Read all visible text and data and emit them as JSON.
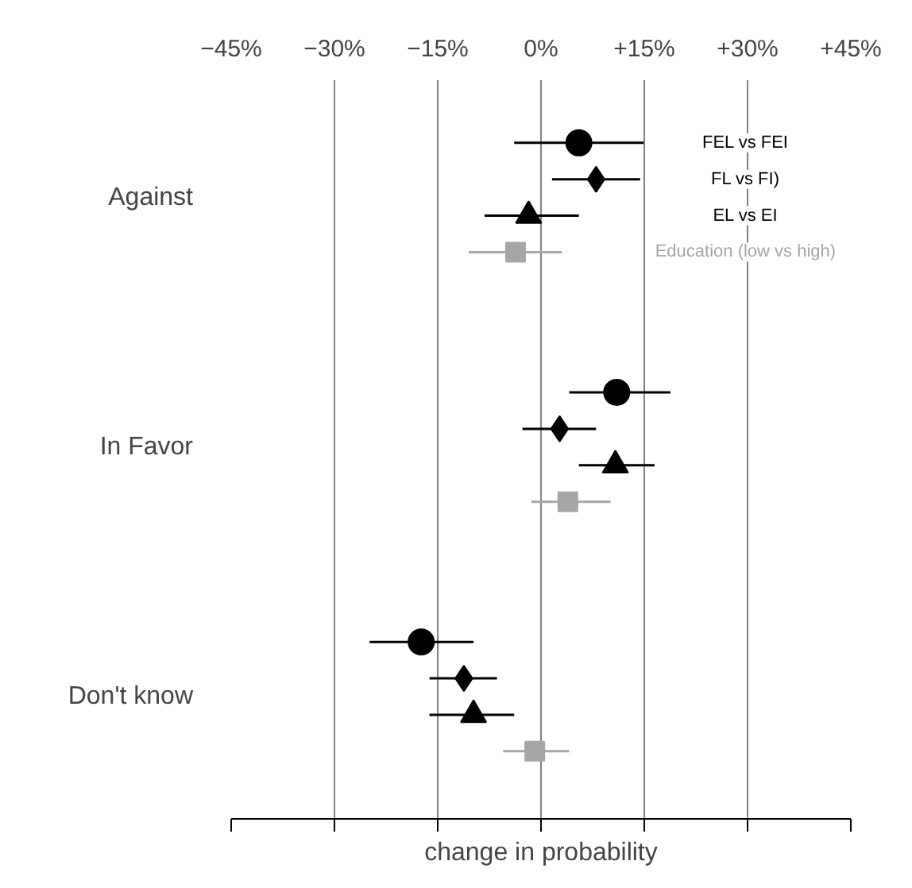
{
  "chart_data": {
    "type": "scatter",
    "orientation": "horizontal",
    "xlabel": "change in probability",
    "categories": [
      "Against",
      "In Favor",
      "Don't know"
    ],
    "series": [
      {
        "name": "FEL vs FEI",
        "color": "#000000",
        "marker": "circle",
        "values": [
          5.5,
          11.0,
          -17.4
        ],
        "errors": [
          [
            -3.9,
            14.9
          ],
          [
            4.1,
            18.8
          ],
          [
            -24.9,
            -9.8
          ]
        ]
      },
      {
        "name": "FL vs FI)",
        "color": "#000000",
        "marker": "diamond",
        "values": [
          8.0,
          2.7,
          -11.2
        ],
        "errors": [
          [
            1.6,
            14.4
          ],
          [
            -2.7,
            8.0
          ],
          [
            -16.2,
            -6.4
          ]
        ]
      },
      {
        "name": "EL vs EI",
        "color": "#000000",
        "marker": "triangle",
        "values": [
          -1.8,
          10.8,
          -9.8
        ],
        "errors": [
          [
            -8.2,
            5.5
          ],
          [
            5.5,
            16.5
          ],
          [
            -16.2,
            -3.9
          ]
        ]
      },
      {
        "name": "Education (low vs high)",
        "color": "#a6a6a6",
        "marker": "square",
        "values": [
          -3.7,
          3.9,
          -0.9
        ],
        "errors": [
          [
            -10.5,
            3.0
          ],
          [
            -1.4,
            10.1
          ],
          [
            -5.5,
            4.1
          ]
        ]
      }
    ],
    "xlim": [
      -45,
      45
    ],
    "xticks": [
      {
        "value": -45,
        "label": "−45%"
      },
      {
        "value": -30,
        "label": "−30%"
      },
      {
        "value": -15,
        "label": "−15%"
      },
      {
        "value": 0,
        "label": "0%"
      },
      {
        "value": 15,
        "label": "+15%"
      },
      {
        "value": 30,
        "label": "+30%"
      },
      {
        "value": 45,
        "label": "+45%"
      }
    ],
    "grid": "x",
    "legend": "top right"
  }
}
